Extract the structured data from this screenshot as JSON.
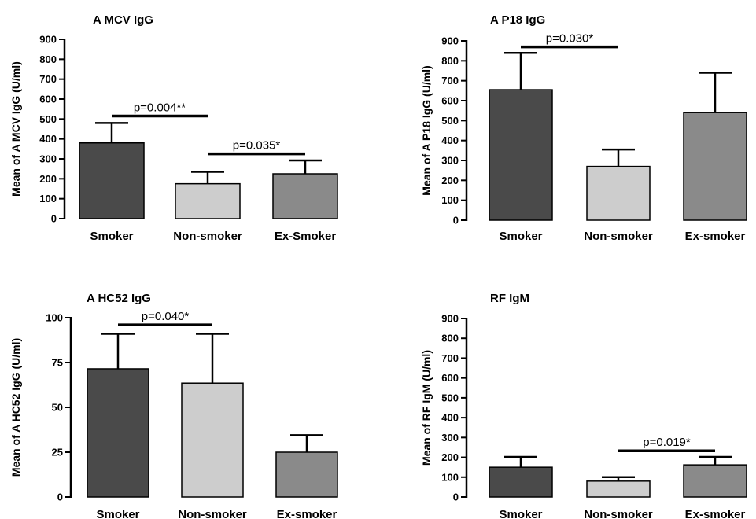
{
  "chart_data": [
    {
      "type": "bar",
      "title": "A MCV IgG",
      "ylabel": "Mean of A MCV IgG (U/ml)",
      "ylim": [
        0,
        900
      ],
      "yticks": [
        0,
        100,
        200,
        300,
        400,
        500,
        600,
        700,
        800,
        900
      ],
      "categories": [
        "Smoker",
        "Non-smoker",
        "Ex-Smoker"
      ],
      "values": [
        380,
        175,
        225
      ],
      "error_upper": [
        480,
        235,
        292
      ],
      "annotations": [
        {
          "text": "p=0.004**",
          "from": 0,
          "to": 1,
          "y": 515
        },
        {
          "text": "p=0.035*",
          "from": 1,
          "to": 2,
          "y": 325
        }
      ]
    },
    {
      "type": "bar",
      "title": "A P18 IgG",
      "ylabel": "Mean of A P18 IgG (U/ml)",
      "ylim": [
        0,
        900
      ],
      "yticks": [
        0,
        100,
        200,
        300,
        400,
        500,
        600,
        700,
        800,
        900
      ],
      "categories": [
        "Smoker",
        "Non-smoker",
        "Ex-smoker"
      ],
      "values": [
        655,
        270,
        540
      ],
      "error_upper": [
        840,
        355,
        740
      ],
      "annotations": [
        {
          "text": "p=0.030*",
          "from": 0,
          "to": 1,
          "y": 870
        }
      ]
    },
    {
      "type": "bar",
      "title": "A HC52 IgG",
      "ylabel": "Mean of A HC52 IgG (U/ml)",
      "ylim": [
        0,
        100
      ],
      "yticks": [
        0,
        25,
        50,
        75,
        100
      ],
      "categories": [
        "Smoker",
        "Non-smoker",
        "Ex-smoker"
      ],
      "values": [
        71.5,
        63.5,
        25
      ],
      "error_upper": [
        91,
        91,
        34.5
      ],
      "annotations": [
        {
          "text": "p=0.040*",
          "from": 0,
          "to": 1,
          "y": 96
        }
      ]
    },
    {
      "type": "bar",
      "title": "RF IgM",
      "ylabel": "Mean of RF IgM (U/ml)",
      "ylim": [
        0,
        900
      ],
      "yticks": [
        0,
        100,
        200,
        300,
        400,
        500,
        600,
        700,
        800,
        900
      ],
      "categories": [
        "Smoker",
        "Non-smoker",
        "Ex-smoker"
      ],
      "values": [
        150,
        80,
        162
      ],
      "error_upper": [
        202,
        100,
        202
      ],
      "annotations": [
        {
          "text": "p=0.019*",
          "from": 1,
          "to": 2,
          "y": 233
        }
      ]
    }
  ],
  "colors": {
    "bar_fills": [
      "#4a4a4a",
      "#cdcdcd",
      "#8a8a8a"
    ],
    "stroke": "#000000"
  }
}
